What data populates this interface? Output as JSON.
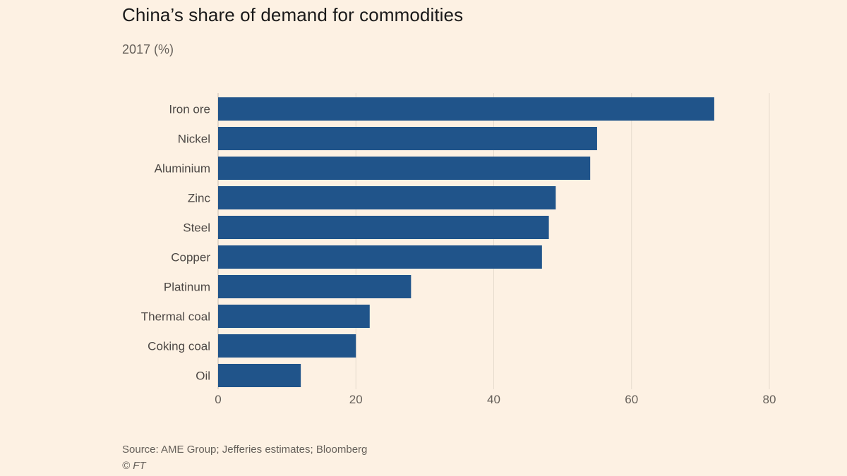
{
  "chart_data": {
    "type": "bar",
    "orientation": "horizontal",
    "title": "China’s share of demand for commodities",
    "subtitle": "2017 (%)",
    "categories": [
      "Iron ore",
      "Nickel",
      "Aluminium",
      "Zinc",
      "Steel",
      "Copper",
      "Platinum",
      "Thermal coal",
      "Coking coal",
      "Oil"
    ],
    "values": [
      72,
      55,
      54,
      49,
      48,
      47,
      28,
      22,
      20,
      12
    ],
    "xlim": [
      0,
      80
    ],
    "xticks": [
      "0",
      "20",
      "40",
      "60",
      "80"
    ],
    "xlabel": "",
    "ylabel": "",
    "grid": "vertical",
    "bar_color": "#20548a"
  },
  "footer": {
    "source": "Source: AME Group; Jefferies estimates; Bloomberg",
    "credit": "© FT"
  }
}
